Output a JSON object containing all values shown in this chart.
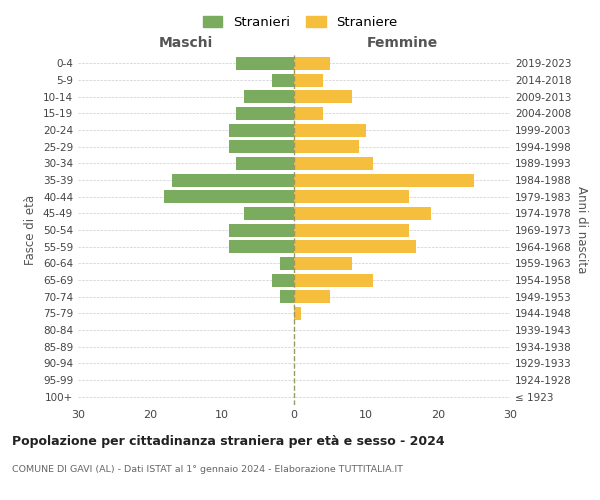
{
  "age_groups": [
    "100+",
    "95-99",
    "90-94",
    "85-89",
    "80-84",
    "75-79",
    "70-74",
    "65-69",
    "60-64",
    "55-59",
    "50-54",
    "45-49",
    "40-44",
    "35-39",
    "30-34",
    "25-29",
    "20-24",
    "15-19",
    "10-14",
    "5-9",
    "0-4"
  ],
  "birth_years": [
    "≤ 1923",
    "1924-1928",
    "1929-1933",
    "1934-1938",
    "1939-1943",
    "1944-1948",
    "1949-1953",
    "1954-1958",
    "1959-1963",
    "1964-1968",
    "1969-1973",
    "1974-1978",
    "1979-1983",
    "1984-1988",
    "1989-1993",
    "1994-1998",
    "1999-2003",
    "2004-2008",
    "2009-2013",
    "2014-2018",
    "2019-2023"
  ],
  "males": [
    0,
    0,
    0,
    0,
    0,
    0,
    2,
    3,
    2,
    9,
    9,
    7,
    18,
    17,
    8,
    9,
    9,
    8,
    7,
    3,
    8
  ],
  "females": [
    0,
    0,
    0,
    0,
    0,
    1,
    5,
    11,
    8,
    17,
    16,
    19,
    16,
    25,
    11,
    9,
    10,
    4,
    8,
    4,
    5
  ],
  "male_color": "#7aab5e",
  "female_color": "#f5be3c",
  "male_label": "Stranieri",
  "female_label": "Straniere",
  "title": "Popolazione per cittadinanza straniera per età e sesso - 2024",
  "subtitle": "COMUNE DI GAVI (AL) - Dati ISTAT al 1° gennaio 2024 - Elaborazione TUTTITALIA.IT",
  "xlabel_left": "Maschi",
  "xlabel_right": "Femmine",
  "ylabel_left": "Fasce di età",
  "ylabel_right": "Anni di nascita",
  "xlim": 30,
  "background_color": "#ffffff",
  "grid_color": "#cccccc",
  "dashed_line_color": "#999966"
}
